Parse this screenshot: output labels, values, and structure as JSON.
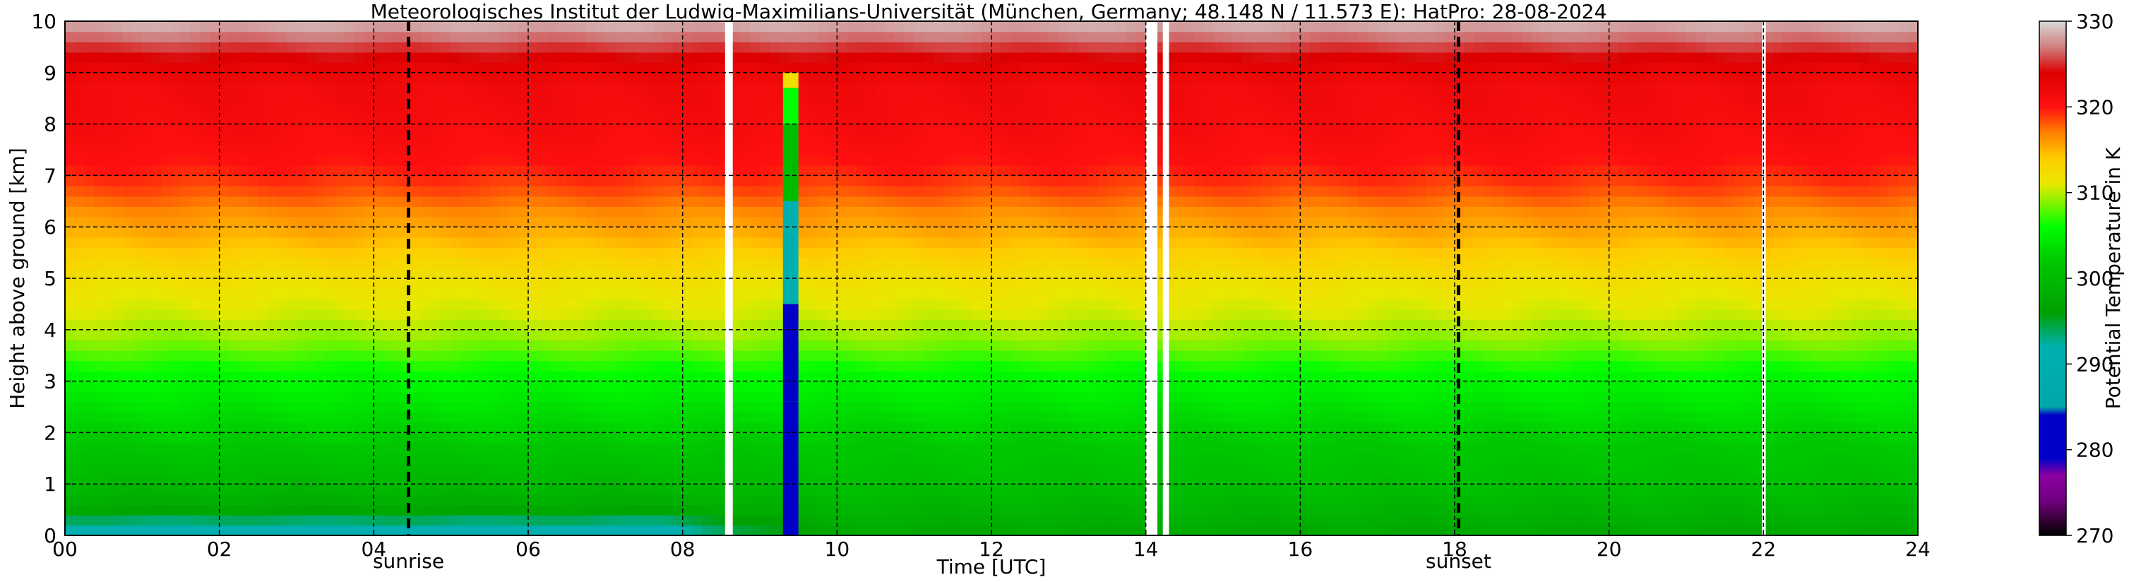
{
  "chart_data": {
    "type": "heatmap",
    "title": "Meteorologisches Institut der Ludwig-Maximilians-Universität (München, Germany; 48.148 N / 11.573 E):    HatPro: 28-08-2024",
    "xlabel": "Time [UTC]",
    "ylabel": "Height above ground [km]",
    "colorbar_label": "Potential Temperature in K",
    "xlim": [
      0,
      24
    ],
    "ylim": [
      0,
      10
    ],
    "clim": [
      270,
      330
    ],
    "x_ticks": [
      0,
      2,
      4,
      6,
      8,
      10,
      12,
      14,
      16,
      18,
      20,
      22,
      24
    ],
    "x_tick_labels": [
      "00",
      "02",
      "04",
      "06",
      "08",
      "10",
      "12",
      "14",
      "16",
      "18",
      "20",
      "22",
      "24"
    ],
    "y_ticks": [
      0,
      1,
      2,
      3,
      4,
      5,
      6,
      7,
      8,
      9,
      10
    ],
    "y_tick_labels": [
      "0",
      "1",
      "2",
      "3",
      "4",
      "5",
      "6",
      "7",
      "8",
      "9",
      "10"
    ],
    "colorbar_ticks": [
      270,
      280,
      290,
      300,
      310,
      320,
      330
    ],
    "colorbar_tick_labels": [
      "270",
      "280",
      "290",
      "300",
      "310",
      "320",
      "330"
    ],
    "grid": true,
    "colormap": [
      {
        "value": 270,
        "color": "#000000"
      },
      {
        "value": 272,
        "color": "#3a003a"
      },
      {
        "value": 274,
        "color": "#700080"
      },
      {
        "value": 277,
        "color": "#8a00a0"
      },
      {
        "value": 279,
        "color": "#0000c8"
      },
      {
        "value": 284,
        "color": "#0000c8"
      },
      {
        "value": 285,
        "color": "#00a8a8"
      },
      {
        "value": 292,
        "color": "#00b0b0"
      },
      {
        "value": 296,
        "color": "#00a000"
      },
      {
        "value": 302,
        "color": "#00c800"
      },
      {
        "value": 306,
        "color": "#00ff00"
      },
      {
        "value": 311,
        "color": "#e8e800"
      },
      {
        "value": 314,
        "color": "#ffcc00"
      },
      {
        "value": 317,
        "color": "#ff8000"
      },
      {
        "value": 320,
        "color": "#ff1010"
      },
      {
        "value": 324,
        "color": "#dc0000"
      },
      {
        "value": 327,
        "color": "#d08080"
      },
      {
        "value": 330,
        "color": "#d8d8d8"
      }
    ],
    "profile": {
      "heights_km": [
        0,
        0.2,
        0.5,
        0.8,
        1.2,
        1.8,
        2.5,
        3.2,
        3.8,
        4.3,
        4.8,
        5.3,
        5.8,
        6.3,
        6.6,
        7.2,
        8.0,
        8.8,
        9.3,
        9.6,
        10
      ],
      "morning_K": [
        291,
        292,
        297,
        299,
        300,
        302,
        304,
        306,
        309,
        310.5,
        311.5,
        313,
        315,
        316.5,
        318,
        320,
        321,
        321.5,
        324,
        326,
        329
      ],
      "day_K": [
        297,
        298,
        299,
        300,
        301,
        302,
        304,
        306,
        309,
        310.5,
        311.5,
        313,
        315,
        316.5,
        318,
        320,
        321,
        321.5,
        324,
        326,
        329
      ]
    },
    "transition_hours": [
      7.8,
      9.8
    ],
    "data_gaps_hours": [
      [
        8.55,
        8.65
      ],
      [
        14.0,
        14.15
      ],
      [
        14.22,
        14.3
      ],
      [
        21.98,
        22.03
      ]
    ],
    "rain_event": {
      "hours": [
        9.3,
        9.5
      ],
      "column": [
        {
          "top_km": 1.0,
          "value": 281
        },
        {
          "top_km": 2.6,
          "value": 280
        },
        {
          "top_km": 4.5,
          "value": 281
        },
        {
          "top_km": 6.5,
          "value": 292
        },
        {
          "top_km": 8.0,
          "value": 300
        },
        {
          "top_km": 8.7,
          "value": 306
        },
        {
          "top_km": 9.0,
          "value": 312
        }
      ]
    },
    "markers": [
      {
        "x": 4.45,
        "label": "sunrise"
      },
      {
        "x": 18.05,
        "label": "sunset"
      }
    ]
  }
}
